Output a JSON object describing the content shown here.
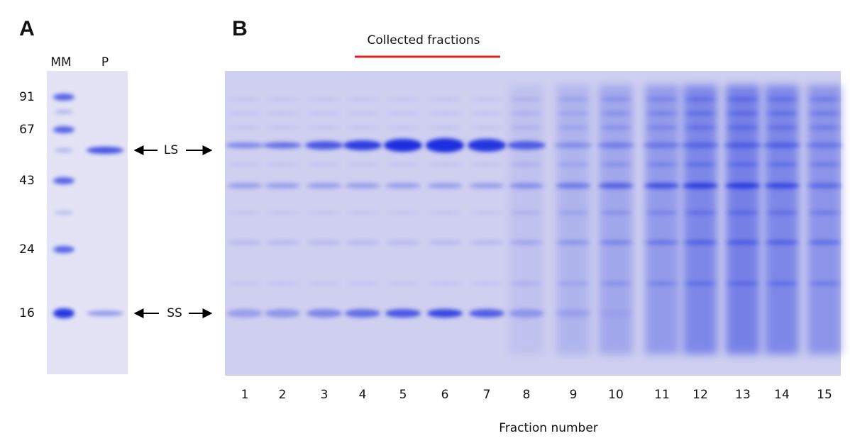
{
  "panel_a": {
    "label": "A",
    "lanes": [
      "MM",
      "P"
    ],
    "markers": [
      91,
      67,
      43,
      24,
      16
    ],
    "bands": [
      "LS",
      "SS"
    ]
  },
  "panel_b": {
    "label": "B",
    "annotation": "Collected fractions",
    "fractions": [
      1,
      2,
      3,
      4,
      5,
      6,
      7,
      8,
      9,
      10,
      11,
      12,
      13,
      14,
      15
    ],
    "x_label": "Fraction number"
  }
}
